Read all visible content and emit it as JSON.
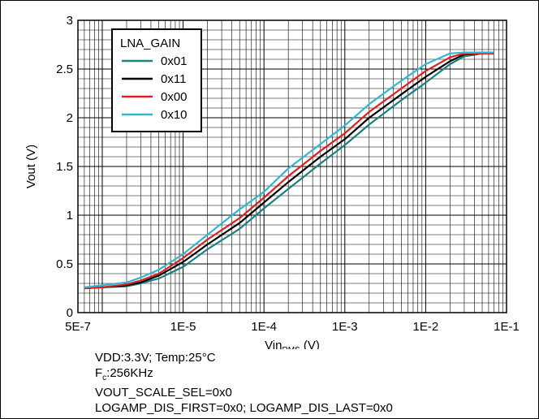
{
  "chart_data": {
    "type": "line",
    "xscale": "log",
    "xlim": [
      5e-07,
      0.1
    ],
    "ylim": [
      0,
      3
    ],
    "xticks": [
      "5E-7",
      "1E-5",
      "1E-4",
      "1E-3",
      "1E-2",
      "1E-1"
    ],
    "yticks": [
      "0",
      "0.5",
      "1",
      "1.5",
      "2",
      "2.5",
      "3"
    ],
    "xlabel_main": "Vin",
    "xlabel_sub": "RMS",
    "xlabel_unit": " (V)",
    "ylabel": "Vout (V)",
    "grid": true,
    "legend_title": "LNA_GAIN",
    "legend_position": "top-left",
    "series": [
      {
        "name": "0x01",
        "color": "#1a8080",
        "x": [
          6e-07,
          1e-06,
          2e-06,
          3e-06,
          5e-06,
          1e-05,
          2e-05,
          5e-05,
          0.0001,
          0.0002,
          0.0005,
          0.001,
          0.002,
          0.005,
          0.01,
          0.02,
          0.03,
          0.05,
          0.07
        ],
        "y": [
          0.25,
          0.26,
          0.27,
          0.3,
          0.35,
          0.47,
          0.65,
          0.86,
          1.07,
          1.27,
          1.53,
          1.72,
          1.93,
          2.18,
          2.36,
          2.55,
          2.63,
          2.66,
          2.66
        ]
      },
      {
        "name": "0x11",
        "color": "#000000",
        "x": [
          6e-07,
          1e-06,
          2e-06,
          3e-06,
          5e-06,
          1e-05,
          2e-05,
          5e-05,
          0.0001,
          0.0002,
          0.0005,
          0.001,
          0.002,
          0.005,
          0.01,
          0.02,
          0.03,
          0.05,
          0.07
        ],
        "y": [
          0.25,
          0.26,
          0.28,
          0.31,
          0.38,
          0.52,
          0.7,
          0.92,
          1.13,
          1.34,
          1.6,
          1.78,
          2.0,
          2.24,
          2.42,
          2.58,
          2.65,
          2.66,
          2.66
        ]
      },
      {
        "name": "0x00",
        "color": "#e02020",
        "x": [
          6e-07,
          1e-06,
          2e-06,
          3e-06,
          5e-06,
          1e-05,
          2e-05,
          5e-05,
          0.0001,
          0.0002,
          0.0005,
          0.001,
          0.002,
          0.005,
          0.01,
          0.02,
          0.03,
          0.05,
          0.07
        ],
        "y": [
          0.25,
          0.26,
          0.29,
          0.33,
          0.4,
          0.56,
          0.75,
          0.97,
          1.18,
          1.4,
          1.66,
          1.84,
          2.06,
          2.3,
          2.48,
          2.62,
          2.66,
          2.66,
          2.66
        ]
      },
      {
        "name": "0x10",
        "color": "#30b8d0",
        "x": [
          6e-07,
          1e-06,
          2e-06,
          3e-06,
          5e-06,
          1e-05,
          2e-05,
          5e-05,
          0.0001,
          0.0002,
          0.0005,
          0.001,
          0.002,
          0.005,
          0.01,
          0.02,
          0.03,
          0.05,
          0.07
        ],
        "y": [
          0.26,
          0.28,
          0.31,
          0.36,
          0.44,
          0.6,
          0.8,
          1.06,
          1.24,
          1.48,
          1.73,
          1.92,
          2.14,
          2.38,
          2.55,
          2.66,
          2.67,
          2.67,
          2.67
        ]
      }
    ]
  },
  "notes": {
    "line1": "VDD:3.3V; Temp:25°C",
    "line2_main": "F",
    "line2_sub": "c",
    "line2_rest": ":256KHz",
    "line3": "VOUT_SCALE_SEL=0x0",
    "line4": "LOGAMP_DIS_FIRST=0x0; LOGAMP_DIS_LAST=0x0"
  }
}
